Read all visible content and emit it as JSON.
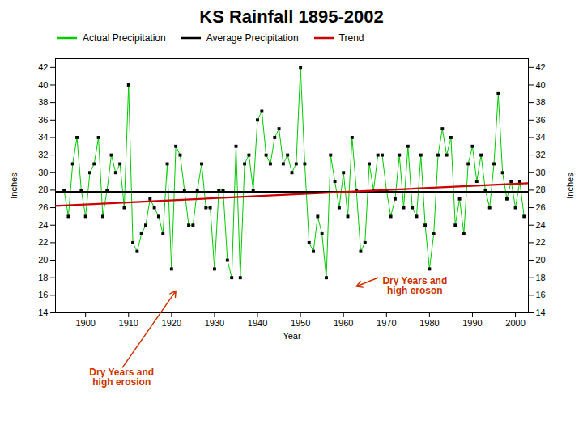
{
  "chart_data": {
    "type": "line",
    "title": "KS Rainfall 1895-2002",
    "xlabel": "Year",
    "ylabel": "Inches",
    "y2label": "Inches",
    "x": [
      1895,
      1896,
      1897,
      1898,
      1899,
      1900,
      1901,
      1902,
      1903,
      1904,
      1905,
      1906,
      1907,
      1908,
      1909,
      1910,
      1911,
      1912,
      1913,
      1914,
      1915,
      1916,
      1917,
      1918,
      1919,
      1920,
      1921,
      1922,
      1923,
      1924,
      1925,
      1926,
      1927,
      1928,
      1929,
      1930,
      1931,
      1932,
      1933,
      1934,
      1935,
      1936,
      1937,
      1938,
      1939,
      1940,
      1941,
      1942,
      1943,
      1944,
      1945,
      1946,
      1947,
      1948,
      1949,
      1950,
      1951,
      1952,
      1953,
      1954,
      1955,
      1956,
      1957,
      1958,
      1959,
      1960,
      1961,
      1962,
      1963,
      1964,
      1965,
      1966,
      1967,
      1968,
      1969,
      1970,
      1971,
      1972,
      1973,
      1974,
      1975,
      1976,
      1977,
      1978,
      1979,
      1980,
      1981,
      1982,
      1983,
      1984,
      1985,
      1986,
      1987,
      1988,
      1989,
      1990,
      1991,
      1992,
      1993,
      1994,
      1995,
      1996,
      1997,
      1998,
      1999,
      2000,
      2001,
      2002
    ],
    "series": [
      {
        "name": "Actual Precipitation",
        "color": "#00cc00",
        "marker": "square",
        "values": [
          28,
          25,
          31,
          34,
          28,
          25,
          30,
          31,
          34,
          25,
          28,
          32,
          30,
          31,
          26,
          40,
          22,
          21,
          23,
          24,
          27,
          26,
          25,
          23,
          31,
          19,
          33,
          32,
          28,
          24,
          24,
          28,
          31,
          26,
          26,
          19,
          28,
          28,
          20,
          18,
          33,
          18,
          31,
          32,
          28,
          36,
          37,
          32,
          31,
          34,
          35,
          31,
          32,
          30,
          31,
          42,
          31,
          22,
          21,
          25,
          23,
          18,
          32,
          29,
          26,
          30,
          25,
          34,
          28,
          21,
          22,
          31,
          28,
          32,
          32,
          28,
          25,
          27,
          32,
          26,
          33,
          26,
          25,
          32,
          24,
          19,
          23,
          32,
          35,
          32,
          34,
          24,
          27,
          23,
          31,
          33,
          29,
          32,
          28,
          26,
          31,
          39,
          30,
          27,
          29,
          26,
          29,
          25
        ]
      },
      {
        "name": "Average Precipitation",
        "color": "black",
        "x": [
          1893,
          2003
        ],
        "values": [
          27.8,
          27.8
        ]
      },
      {
        "name": "Trend",
        "color": "#cc0000",
        "x": [
          1893,
          2003
        ],
        "values": [
          26.2,
          28.8
        ]
      }
    ],
    "xlim": [
      1893,
      2003
    ],
    "xticks": [
      1900,
      1910,
      1920,
      1930,
      1940,
      1950,
      1960,
      1970,
      1980,
      1990,
      2000
    ],
    "ylim": [
      14,
      43
    ],
    "yticks": [
      14,
      16,
      18,
      20,
      22,
      24,
      26,
      28,
      30,
      32,
      34,
      36,
      38,
      40,
      42
    ],
    "y2lim": [
      14,
      43
    ],
    "y2ticks": [
      14,
      16,
      18,
      20,
      22,
      24,
      26,
      28,
      30,
      32,
      34,
      36,
      38,
      40,
      42
    ],
    "legend": "upper left",
    "annotations": [
      {
        "text": "Dry Years and\nhigh erosion",
        "x": 1921,
        "y": 16.5,
        "color": "#cc3300"
      },
      {
        "text": "Dry Years and\nhigh eroson",
        "x": 1963,
        "y": 17.0,
        "color": "#cc3300"
      }
    ]
  }
}
